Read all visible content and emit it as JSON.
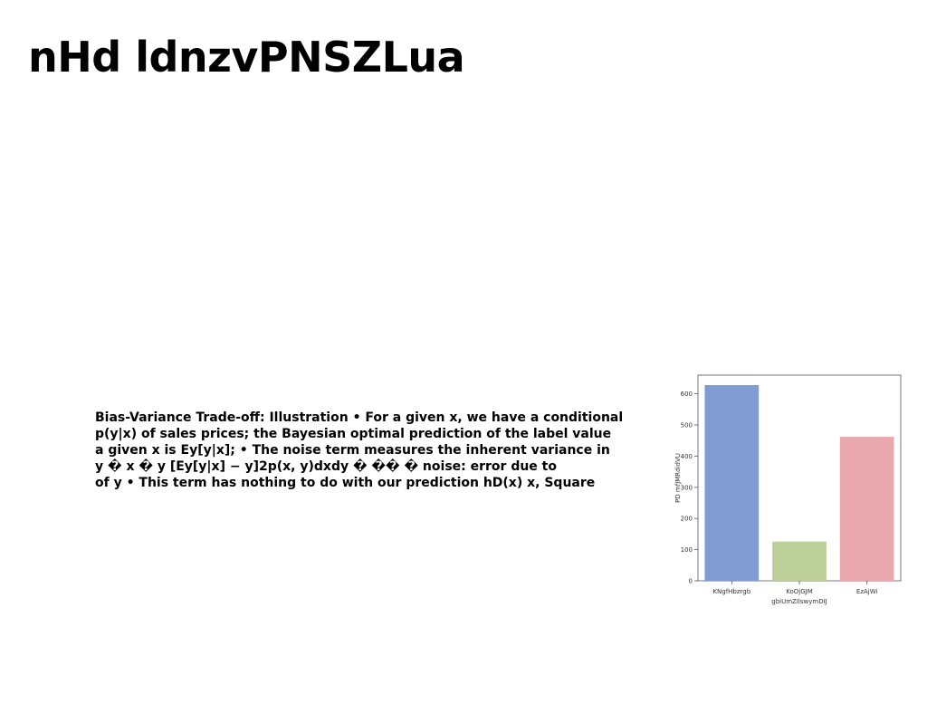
{
  "slide": {
    "title": "nHd ldnzvPNSZLua",
    "body_lines": [
      "Bias-Variance Trade-off: Illustration • For a given x, we have a conditional",
      "p(y|x) of sales prices; the Bayesian optimal prediction of the label value",
      "a given x is Ey[y|x]; • The noise term measures the inherent variance in",
      "y � x � y [Ey[y|x] − y]2p(x, y)dxdy � �� � noise: error due to",
      "of y • This term has nothing to do with our prediction hD(x) x, Square"
    ]
  },
  "chart_data": {
    "type": "bar",
    "categories": [
      "KNgfHbzrgb",
      "KoOjGJM",
      "EzAjWi"
    ],
    "values": [
      628,
      126,
      462
    ],
    "colors": [
      "#819bd3",
      "#bccf98",
      "#e8a8ad"
    ],
    "xlabel": "gbiUmZIlswymDIJ",
    "ylabel": "PD mfJMRdidVU",
    "ylim": [
      0,
      660
    ],
    "yticks": [
      0,
      100,
      200,
      300,
      400,
      500,
      600
    ],
    "grid": false
  }
}
